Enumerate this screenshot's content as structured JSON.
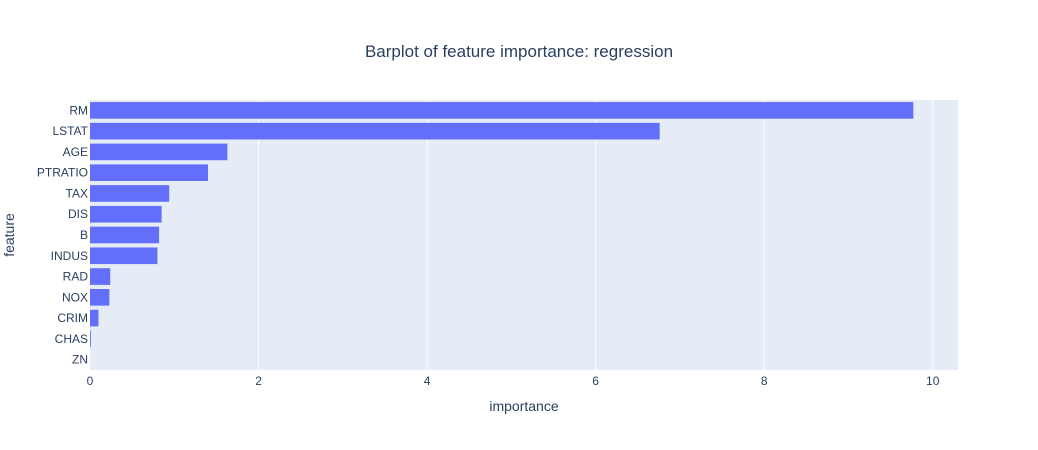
{
  "chart_data": {
    "type": "bar",
    "orientation": "horizontal",
    "title": "Barplot of feature importance: regression",
    "xlabel": "importance",
    "ylabel": "feature",
    "xlim": [
      0,
      10.3
    ],
    "xticks": [
      0,
      2,
      4,
      6,
      8,
      10
    ],
    "grid": true,
    "colors": {
      "bar": "#636efa",
      "plot_bg": "#e5ecf6",
      "grid": "#ffffff",
      "text": "#2a3f5f"
    },
    "categories": [
      "RM",
      "LSTAT",
      "AGE",
      "PTRATIO",
      "TAX",
      "DIS",
      "B",
      "INDUS",
      "RAD",
      "NOX",
      "CRIM",
      "CHAS",
      "ZN"
    ],
    "values": [
      9.77,
      6.76,
      1.63,
      1.4,
      0.94,
      0.85,
      0.82,
      0.8,
      0.24,
      0.23,
      0.1,
      0.01,
      0.0
    ]
  }
}
